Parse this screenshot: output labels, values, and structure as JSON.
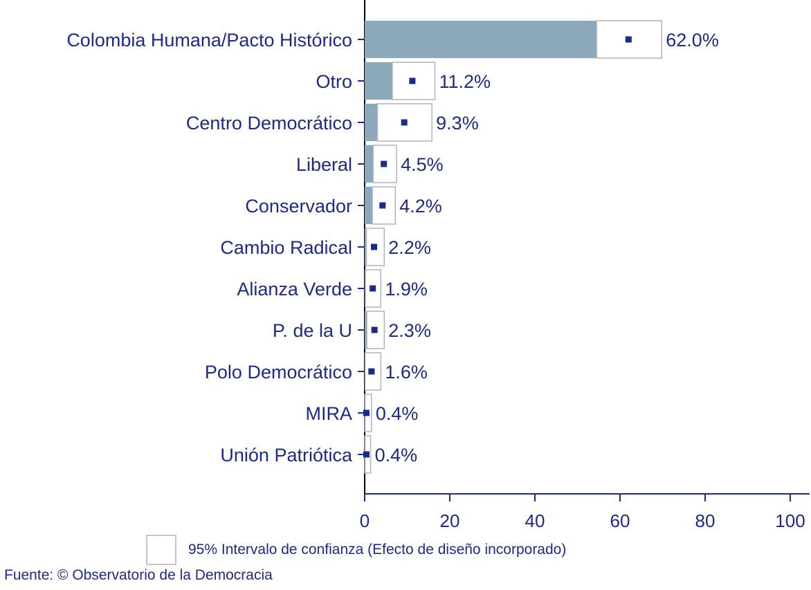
{
  "chart_data": {
    "type": "bar",
    "orientation": "horizontal",
    "categories": [
      "Colombia Humana/Pacto Histórico",
      "Otro",
      "Centro Democrático",
      "Liberal",
      "Conservador",
      "Cambio Radical",
      "Alianza Verde",
      "P. de la U",
      "Polo Democrático",
      "MIRA",
      "Unión Patriótica"
    ],
    "values": [
      62.0,
      11.2,
      9.3,
      4.5,
      4.2,
      2.2,
      1.9,
      2.3,
      1.6,
      0.4,
      0.4
    ],
    "value_labels": [
      "62.0%",
      "11.2%",
      "9.3%",
      "4.5%",
      "4.2%",
      "2.2%",
      "1.9%",
      "2.3%",
      "1.6%",
      "0.4%",
      "0.4%"
    ],
    "ci_lower": [
      54.5,
      6.5,
      3.0,
      2.0,
      1.8,
      0.4,
      0.2,
      0.5,
      0.1,
      0.0,
      0.0
    ],
    "ci_upper": [
      69.8,
      16.5,
      15.8,
      7.5,
      7.2,
      4.6,
      3.8,
      4.6,
      3.8,
      1.6,
      1.4
    ],
    "xlim": [
      0,
      100
    ],
    "x_ticks": [
      0,
      20,
      40,
      60,
      80,
      100
    ],
    "grid": false,
    "colors": {
      "bar": "#8ca8bb",
      "point": "#1c2a8a",
      "text": "#1c2a8a",
      "ci_box_border": "#b0b0cc"
    }
  },
  "legend": {
    "label": "95% Intervalo de confianza (Efecto de diseño incorporado)",
    "position": "bottom"
  },
  "source": "Fuente: © Observatorio de la Democracia"
}
